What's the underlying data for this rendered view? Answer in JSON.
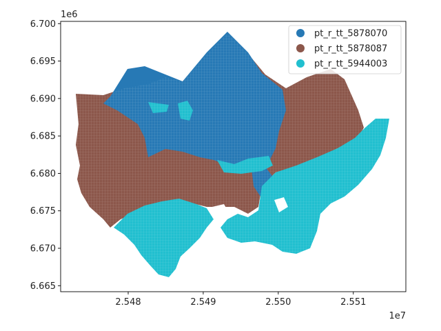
{
  "chart_data": {
    "type": "map",
    "title": "",
    "xlabel": "",
    "ylabel": "",
    "x_offset_label": "1e7",
    "y_offset_label": "1e6",
    "xlim": [
      2.5471,
      2.5517
    ],
    "ylim": [
      6.6642,
      6.7003
    ],
    "x_ticks": [
      "2.548",
      "2.549",
      "2.550",
      "2.551"
    ],
    "y_ticks": [
      "6.665",
      "6.670",
      "6.675",
      "6.680",
      "6.685",
      "6.690",
      "6.695",
      "6.700"
    ],
    "legend_position": "upper right",
    "categories": [
      {
        "name": "pt_r_tt_5878070",
        "color": "#2779b5"
      },
      {
        "name": "pt_r_tt_5878087",
        "color": "#8c574b"
      },
      {
        "name": "pt_r_tt_5944003",
        "color": "#21bfcf"
      }
    ]
  }
}
